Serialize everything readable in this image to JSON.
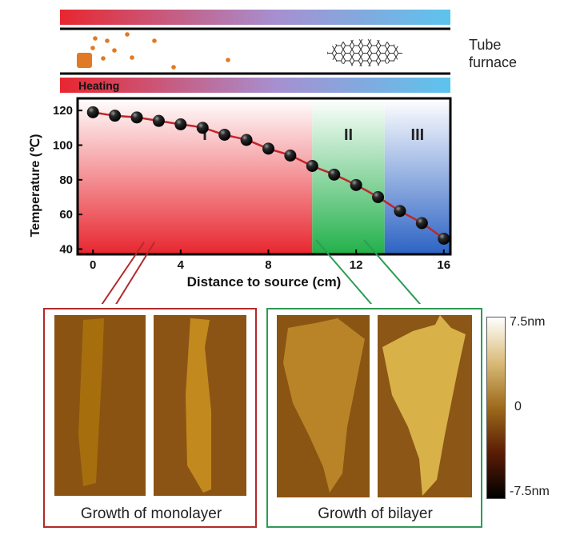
{
  "furnace": {
    "label_line1": "Tube",
    "label_line2": "furnace",
    "heating_label": "Heating"
  },
  "colors": {
    "hot": "#e8262f",
    "cool": "#5cc4ee",
    "region_I": "#e8262f",
    "region_II": "#22b04a",
    "region_III": "#2c63c4",
    "curve": "#c0262c",
    "particle": "#e07a24",
    "monolayer_box": "#b22a2a",
    "bilayer_box": "#2e9b55"
  },
  "chart_data": {
    "type": "line",
    "xlabel": "Distance to source (cm)",
    "ylabel": "Temperature (℃)",
    "xlim": [
      -0.7,
      16.3
    ],
    "ylim": [
      37,
      127
    ],
    "xticks": [
      0,
      4,
      8,
      12,
      16
    ],
    "yticks": [
      40,
      60,
      80,
      100,
      120
    ],
    "x": [
      0,
      1,
      2,
      3,
      4,
      5,
      6,
      7,
      8,
      9,
      10,
      11,
      12,
      13,
      14,
      15,
      16
    ],
    "y": [
      119,
      117,
      116,
      114,
      112,
      110,
      106,
      103,
      98,
      94,
      88,
      83,
      77,
      70,
      62,
      55,
      46
    ],
    "regions": [
      {
        "label": "I",
        "x_start": -0.7,
        "x_end": 10
      },
      {
        "label": "II",
        "x_start": 10,
        "x_end": 13.3
      },
      {
        "label": "III",
        "x_start": 13.3,
        "x_end": 16.3
      }
    ],
    "grid": false
  },
  "panels": {
    "monolayer_caption": "Growth of monolayer",
    "bilayer_caption": "Growth of bilayer"
  },
  "colorbar": {
    "max_label": "7.5nm",
    "mid_label": "0",
    "min_label": "-7.5nm"
  }
}
